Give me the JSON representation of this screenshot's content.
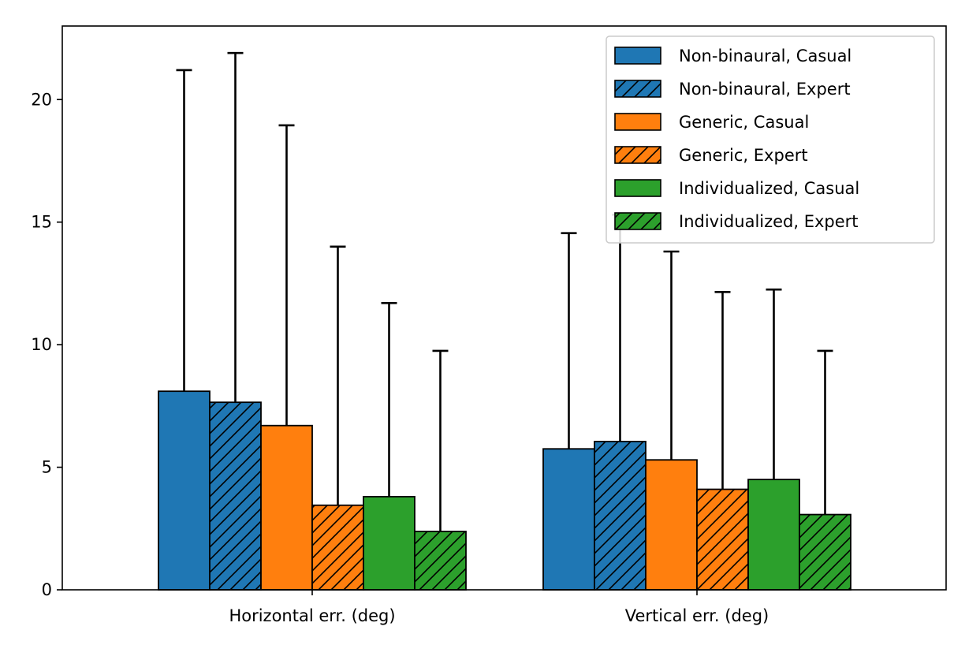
{
  "chart_data": {
    "type": "bar",
    "title": "",
    "xlabel": "",
    "ylabel": "",
    "categories": [
      "Horizontal err. (deg)",
      "Vertical err. (deg)"
    ],
    "ylim": [
      0,
      23
    ],
    "yticks": [
      0,
      5,
      10,
      15,
      20
    ],
    "grid": false,
    "legend_position": "top-right",
    "series": [
      {
        "name": "Non-binaural, Casual",
        "color": "#1f77b4",
        "hatch": false,
        "values": [
          8.1,
          5.75
        ],
        "error": [
          13.1,
          8.8
        ]
      },
      {
        "name": "Non-binaural, Expert",
        "color": "#1f77b4",
        "hatch": true,
        "values": [
          7.65,
          6.05
        ],
        "error": [
          14.25,
          9.25
        ]
      },
      {
        "name": "Generic, Casual",
        "color": "#ff7f0e",
        "hatch": false,
        "values": [
          6.7,
          5.3
        ],
        "error": [
          12.25,
          8.5
        ]
      },
      {
        "name": "Generic, Expert",
        "color": "#ff7f0e",
        "hatch": true,
        "values": [
          3.45,
          4.1
        ],
        "error": [
          10.55,
          8.05
        ]
      },
      {
        "name": "Individualized, Casual",
        "color": "#2ca02c",
        "hatch": false,
        "values": [
          3.8,
          4.5
        ],
        "error": [
          7.9,
          7.75
        ]
      },
      {
        "name": "Individualized, Expert",
        "color": "#2ca02c",
        "hatch": true,
        "values": [
          2.38,
          3.07
        ],
        "error": [
          7.37,
          6.68
        ]
      }
    ]
  }
}
